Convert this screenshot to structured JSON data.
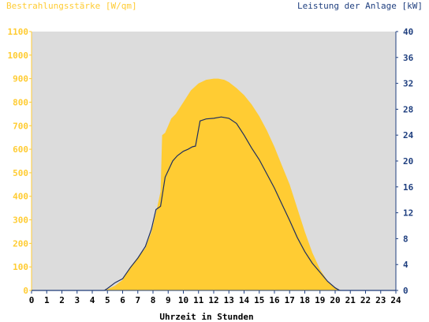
{
  "chart_data": {
    "type": "area",
    "left_axis_title": "Bestrahlungsstärke [W/qm]",
    "right_axis_title": "Leistung der Anlage [kW]",
    "xlabel": "Uhrzeit in Stunden",
    "xlim": [
      0,
      24
    ],
    "ylim_left": [
      0,
      1100
    ],
    "ylim_right": [
      0,
      40
    ],
    "x_ticks": [
      "0",
      "1",
      "2",
      "3",
      "4",
      "5",
      "6",
      "7",
      "8",
      "9",
      "10",
      "11",
      "12",
      "13",
      "14",
      "15",
      "16",
      "17",
      "18",
      "19",
      "20",
      "21",
      "22",
      "23",
      "24"
    ],
    "y_left_ticks": [
      "0",
      "100",
      "200",
      "300",
      "400",
      "500",
      "600",
      "700",
      "800",
      "900",
      "1000",
      "1100"
    ],
    "y_right_ticks": [
      "0",
      "4",
      "8",
      "12",
      "16",
      "20",
      "24",
      "28",
      "32",
      "36",
      "40"
    ],
    "grid": false,
    "colors": {
      "plot_background": "#dcdcdc",
      "irradiance_fill": "#ffcc33",
      "power_line": "#1f2f5f",
      "left_axis_text": "#ffcc33",
      "right_axis_text": "#1f3f7f"
    },
    "series": [
      {
        "axis": "left",
        "style": "area",
        "x": [
          0,
          4.6,
          5.0,
          5.5,
          6.0,
          6.5,
          7.0,
          7.5,
          7.9,
          8.2,
          8.5,
          8.6,
          8.8,
          9.0,
          9.2,
          9.5,
          10.0,
          10.5,
          11.0,
          11.5,
          12.0,
          12.3,
          12.7,
          13.0,
          13.5,
          14.0,
          14.5,
          15.0,
          15.5,
          16.0,
          16.5,
          17.0,
          17.5,
          18.0,
          18.5,
          19.0,
          19.5,
          20.0,
          20.3,
          20.5,
          24
        ],
        "values": [
          0,
          0,
          5,
          20,
          45,
          100,
          140,
          180,
          250,
          330,
          420,
          660,
          670,
          700,
          730,
          750,
          800,
          850,
          880,
          895,
          900,
          900,
          895,
          885,
          860,
          830,
          790,
          740,
          680,
          610,
          530,
          450,
          350,
          250,
          160,
          90,
          40,
          10,
          3,
          0,
          0
        ]
      },
      {
        "axis": "right",
        "style": "line",
        "x": [
          0,
          4.8,
          5.0,
          5.5,
          6.0,
          6.5,
          7.0,
          7.5,
          7.9,
          8.2,
          8.5,
          8.8,
          9.0,
          9.3,
          9.6,
          10.0,
          10.3,
          10.6,
          10.8,
          11.1,
          11.5,
          12.0,
          12.5,
          13.0,
          13.5,
          14.0,
          14.5,
          15.0,
          15.5,
          16.0,
          16.5,
          17.0,
          17.5,
          18.0,
          18.5,
          19.0,
          19.5,
          20.0,
          20.3,
          24
        ],
        "values": [
          0,
          0,
          0.3,
          1.2,
          1.8,
          3.5,
          5.0,
          6.8,
          9.5,
          12.5,
          13.0,
          17.5,
          18.5,
          20.0,
          20.8,
          21.5,
          21.8,
          22.2,
          22.3,
          26.2,
          26.5,
          26.6,
          26.8,
          26.6,
          25.8,
          24.0,
          22.0,
          20.2,
          18.0,
          15.8,
          13.3,
          10.8,
          8.2,
          6.0,
          4.2,
          2.8,
          1.4,
          0.4,
          0,
          0
        ]
      }
    ]
  }
}
